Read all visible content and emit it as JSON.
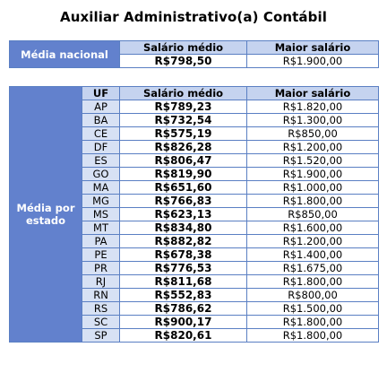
{
  "title": "Auxiliar Administrativo(a) Contábil",
  "national": {
    "label": "Média nacional",
    "headers": {
      "salary": "Salário médio",
      "max": "Maior salário"
    },
    "salary": "R$798,50",
    "max": "R$1.900,00"
  },
  "state": {
    "label": "Média por estado",
    "headers": {
      "uf": "UF",
      "salary": "Salário médio",
      "max": "Maior salário"
    },
    "rows": [
      {
        "uf": "AP",
        "salary": "R$789,23",
        "max": "R$1.820,00"
      },
      {
        "uf": "BA",
        "salary": "R$732,54",
        "max": "R$1.300,00"
      },
      {
        "uf": "CE",
        "salary": "R$575,19",
        "max": "R$850,00"
      },
      {
        "uf": "DF",
        "salary": "R$826,28",
        "max": "R$1.200,00"
      },
      {
        "uf": "ES",
        "salary": "R$806,47",
        "max": "R$1.520,00"
      },
      {
        "uf": "GO",
        "salary": "R$819,90",
        "max": "R$1.900,00"
      },
      {
        "uf": "MA",
        "salary": "R$651,60",
        "max": "R$1.000,00"
      },
      {
        "uf": "MG",
        "salary": "R$766,83",
        "max": "R$1.800,00"
      },
      {
        "uf": "MS",
        "salary": "R$623,13",
        "max": "R$850,00"
      },
      {
        "uf": "MT",
        "salary": "R$834,80",
        "max": "R$1.600,00"
      },
      {
        "uf": "PA",
        "salary": "R$882,82",
        "max": "R$1.200,00"
      },
      {
        "uf": "PE",
        "salary": "R$678,38",
        "max": "R$1.400,00"
      },
      {
        "uf": "PR",
        "salary": "R$776,53",
        "max": "R$1.675,00"
      },
      {
        "uf": "RJ",
        "salary": "R$811,68",
        "max": "R$1.800,00"
      },
      {
        "uf": "RN",
        "salary": "R$552,83",
        "max": "R$800,00"
      },
      {
        "uf": "RS",
        "salary": "R$786,62",
        "max": "R$1.500,00"
      },
      {
        "uf": "SC",
        "salary": "R$900,17",
        "max": "R$1.800,00"
      },
      {
        "uf": "SP",
        "salary": "R$820,61",
        "max": "R$1.800,00"
      }
    ]
  }
}
